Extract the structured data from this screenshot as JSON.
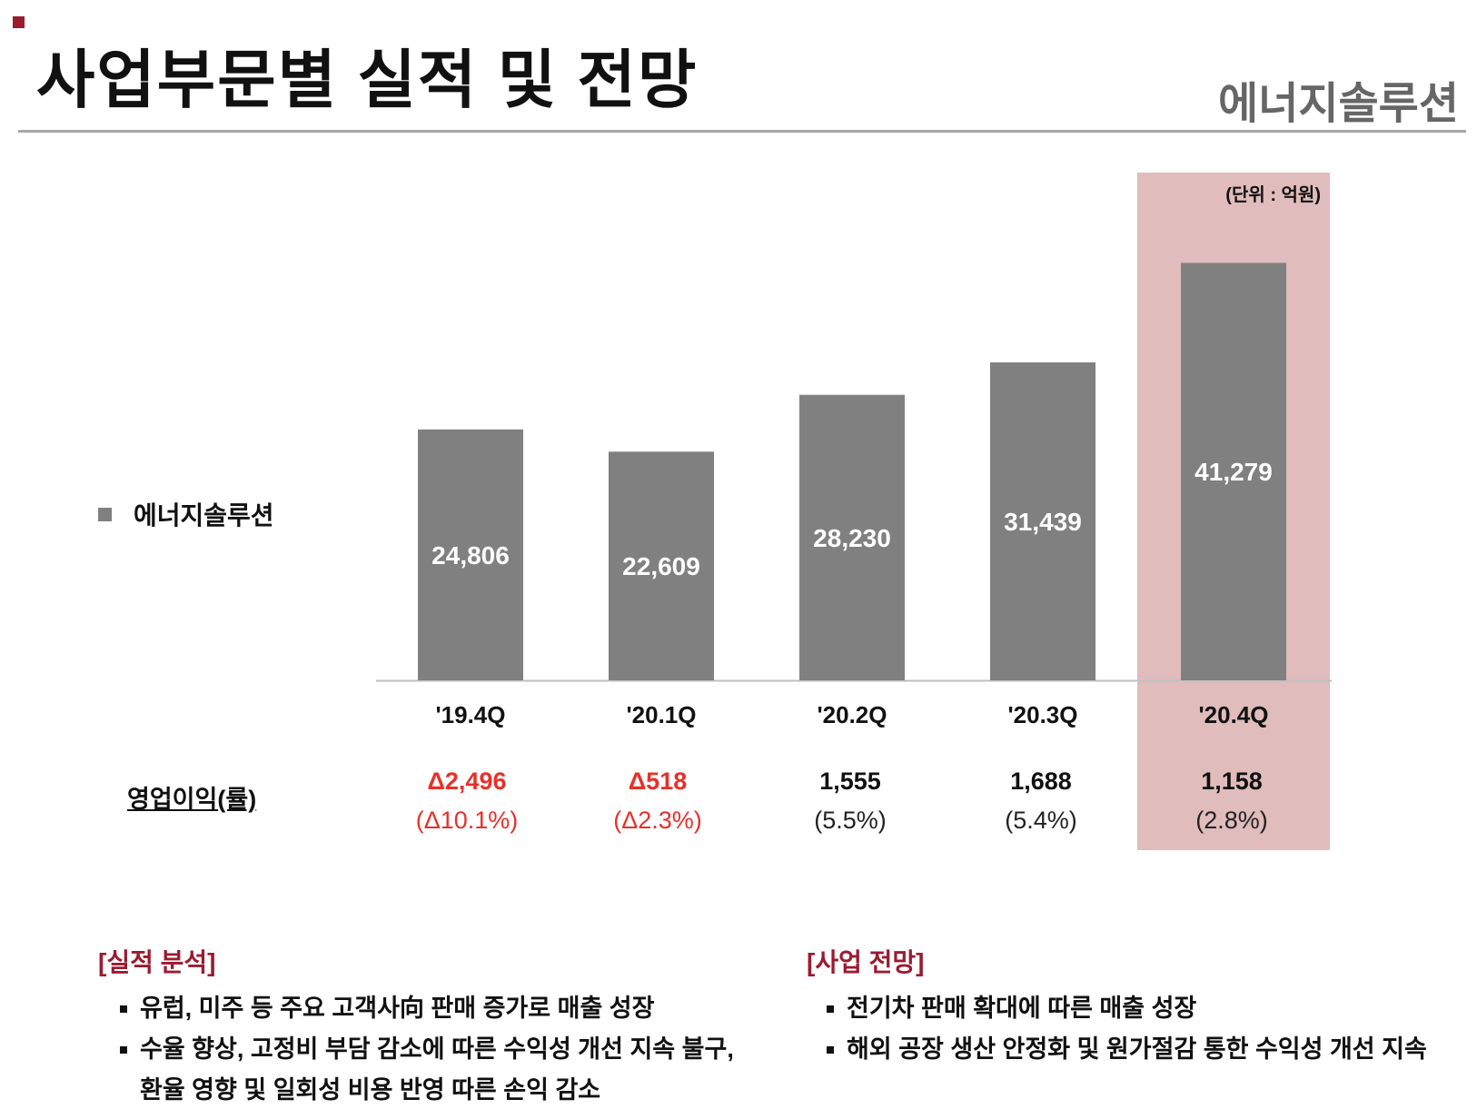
{
  "header": {
    "title": "사업부문별 실적 및 전망",
    "division": "에너지솔루션"
  },
  "colors": {
    "accent": "#9b1b30",
    "bar": "#808080",
    "highlight": "#e0bcbc",
    "negative": "#e8302a",
    "axis": "#bfbfbf"
  },
  "chart_data": {
    "type": "bar",
    "title": "",
    "unit": "(단위 : 억원)",
    "categories": [
      "'19.4Q",
      "'20.1Q",
      "'20.2Q",
      "'20.3Q",
      "'20.4Q"
    ],
    "series": [
      {
        "name": "에너지솔루션",
        "values": [
          24806,
          22609,
          28230,
          31439,
          41279
        ]
      }
    ],
    "value_labels": [
      "24,806",
      "22,609",
      "28,230",
      "31,439",
      "41,279"
    ],
    "highlighted_category": "'20.4Q",
    "xlabel": "",
    "ylabel": "",
    "ylim": [
      0,
      45000
    ],
    "legend": "left"
  },
  "operating_profit": {
    "title": "영업이익(률)",
    "items": [
      {
        "value": "Δ2,496",
        "rate": "(Δ10.1%)",
        "negative": true
      },
      {
        "value": "Δ518",
        "rate": "(Δ2.3%)",
        "negative": true
      },
      {
        "value": "1,555",
        "rate": "(5.5%)",
        "negative": false
      },
      {
        "value": "1,688",
        "rate": "(5.4%)",
        "negative": false
      },
      {
        "value": "1,158",
        "rate": "(2.8%)",
        "negative": false
      }
    ]
  },
  "analysis": {
    "title": "[실적 분석]",
    "bullets": [
      "유럽, 미주 등 주요 고객사向 판매 증가로 매출 성장",
      "수율 향상, 고정비 부담 감소에 따른 수익성 개선 지속 불구,",
      "환율 영향 및 일회성 비용 반영 따른 손익 감소"
    ]
  },
  "outlook": {
    "title": "[사업 전망]",
    "bullets": [
      "전기차 판매 확대에 따른 매출 성장",
      "해외 공장 생산 안정화 및 원가절감 통한 수익성 개선 지속"
    ]
  }
}
